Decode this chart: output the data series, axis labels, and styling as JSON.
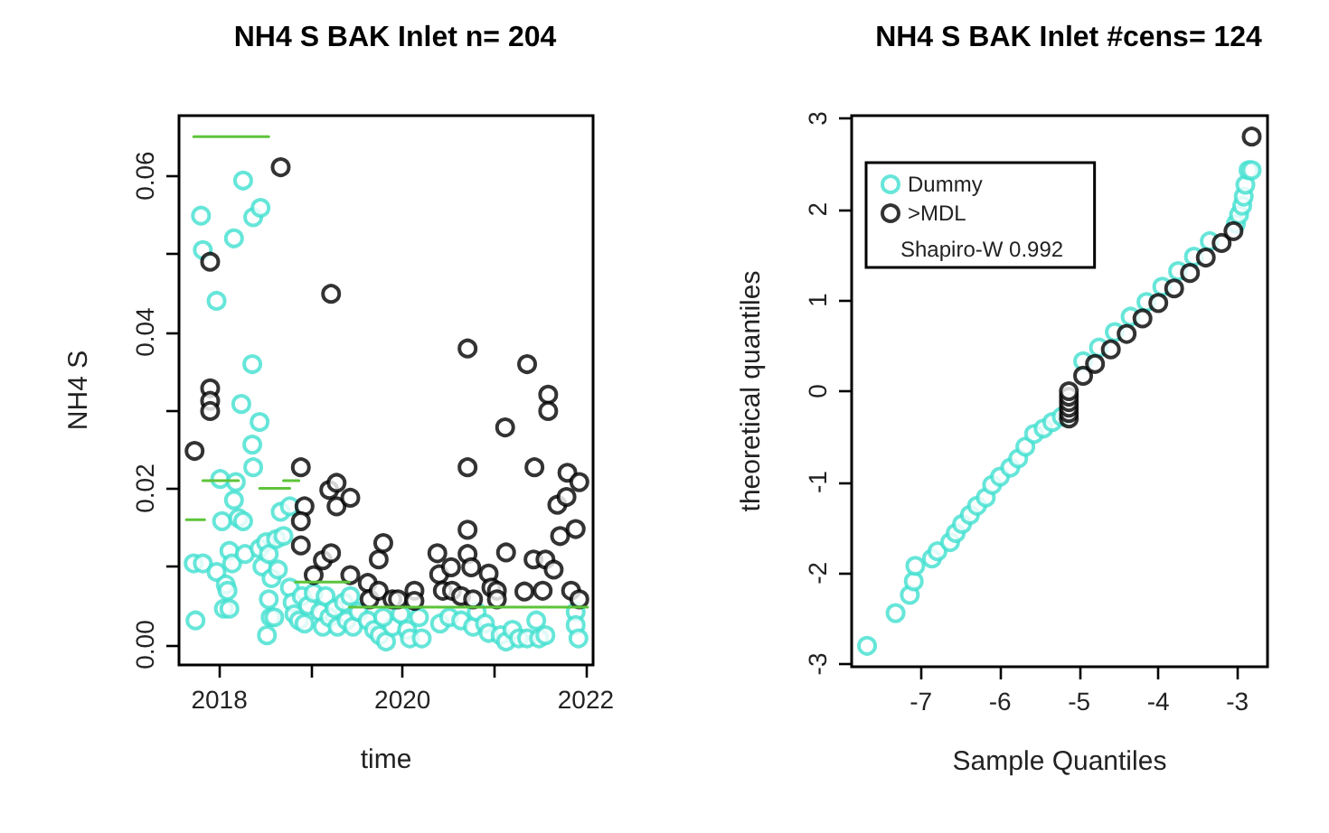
{
  "chart_data": [
    {
      "type": "scatter",
      "title": "NH4 S BAK Inlet n= 204",
      "xlabel": "time",
      "ylabel": "NH4 S",
      "marker": "circle",
      "grid": false,
      "xlim": [
        2017.56,
        2022.08
      ],
      "ylim": [
        -0.0026,
        0.0677
      ],
      "xticks": [
        2018,
        {
          "value": 2019,
          "label": null
        },
        2020,
        {
          "value": 2021,
          "label": null
        },
        2022
      ],
      "yticks": [
        {
          "value": 0,
          "label": "0.00"
        },
        {
          "value": 0.01,
          "label": null
        },
        {
          "value": 0.02,
          "label": "0.02"
        },
        {
          "value": 0.03,
          "label": null
        },
        {
          "value": 0.04,
          "label": "0.04"
        },
        {
          "value": 0.05,
          "label": null
        },
        {
          "value": 0.06,
          "label": "0.06"
        }
      ],
      "series": [
        {
          "color": "#40e0d0",
          "x": [
            2017.74,
            2017.72,
            2017.82,
            2017.8,
            2017.82,
            2017.97,
            2017.97,
            2018.01,
            2018.03,
            2018.07,
            2018.09,
            2018.05,
            2018.11,
            2018.11,
            2018.14,
            2018.16,
            2018.18,
            2018.16,
            2018.21,
            2018.26,
            2018.24,
            2018.26,
            2018.28,
            2018.36,
            2018.36,
            2018.37,
            2018.44,
            2018.37,
            2018.45,
            2018.44,
            2018.47,
            2018.51,
            2018.54,
            2018.54,
            2018.52,
            2018.56,
            2018.57,
            2018.6,
            2018.62,
            2018.67,
            2018.64,
            2018.7,
            2018.77,
            2018.77,
            2018.8,
            2018.82,
            2018.87,
            2018.9,
            2018.93,
            2018.97,
            2019.03,
            2019.1,
            2019.13,
            2019.16,
            2019.2,
            2019.26,
            2019.29,
            2019.36,
            2019.39,
            2019.43,
            2019.46,
            2019.52,
            2019.62,
            2019.69,
            2019.75,
            2019.82,
            2019.89,
            2019.79,
            2019.98,
            2020.05,
            2020.08,
            2020.18,
            2020.21,
            2020.41,
            2020.51,
            2020.64,
            2020.77,
            2020.81,
            2020.9,
            2020.94,
            2021.07,
            2021.13,
            2021.2,
            2021.27,
            2021.36,
            2021.46,
            2021.49,
            2021.56,
            2021.89,
            2021.89,
            2021.92
          ],
          "values": [
            0.0031,
            0.0104,
            0.0104,
            0.0549,
            0.0505,
            0.044,
            0.0093,
            0.0212,
            0.0158,
            0.0077,
            0.0069,
            0.0046,
            0.0046,
            0.012,
            0.0104,
            0.052,
            0.0208,
            0.0185,
            0.0162,
            0.0594,
            0.0308,
            0.0158,
            0.0116,
            0.0359,
            0.0256,
            0.0227,
            0.0285,
            0.0547,
            0.0559,
            0.0123,
            0.01,
            0.0131,
            0.0116,
            0.0058,
            0.0012,
            0.0035,
            0.0085,
            0.0035,
            0.0135,
            0.017,
            0.0096,
            0.0139,
            0.0177,
            0.0073,
            0.0054,
            0.0039,
            0.0031,
            0.0062,
            0.0027,
            0.005,
            0.0066,
            0.0042,
            0.0023,
            0.0062,
            0.0035,
            0.0046,
            0.0023,
            0.0054,
            0.0031,
            0.0062,
            0.0023,
            0.0042,
            0.0031,
            0.0019,
            0.0012,
            0.0004,
            0.0023,
            0.0035,
            0.0039,
            0.0019,
            0.0008,
            0.0035,
            0.0008,
            0.0027,
            0.0035,
            0.0031,
            0.0023,
            0.0042,
            0.0027,
            0.0015,
            0.0012,
            0.0004,
            0.0019,
            0.0008,
            0.0008,
            0.0031,
            0.0008,
            0.0012,
            0.0042,
            0.0025,
            0.0008
          ]
        },
        {
          "color": "#000000",
          "x": [
            2017.73,
            2017.9,
            2017.9,
            2017.9,
            2017.9,
            2018.67,
            2018.89,
            2018.93,
            2018.89,
            2018.89,
            2019.03,
            2019.13,
            2019.22,
            2019.22,
            2019.2,
            2019.28,
            2019.28,
            2019.43,
            2019.43,
            2019.62,
            2019.64,
            2019.74,
            2019.79,
            2019.74,
            2019.89,
            2019.95,
            2020.13,
            2020.13,
            2020.38,
            2020.4,
            2020.44,
            2020.53,
            2020.54,
            2020.64,
            2020.71,
            2020.71,
            2020.71,
            2020.71,
            2020.75,
            2020.77,
            2020.94,
            2020.97,
            2021.03,
            2021.03,
            2021.12,
            2021.13,
            2021.33,
            2021.36,
            2021.43,
            2021.44,
            2021.53,
            2021.56,
            2021.59,
            2021.59,
            2021.65,
            2021.69,
            2021.72,
            2021.79,
            2021.8,
            2021.84,
            2021.89,
            2021.93,
            2021.93
          ],
          "values": [
            0.0248,
            0.049,
            0.0328,
            0.0312,
            0.0299,
            0.0611,
            0.0227,
            0.0177,
            0.0158,
            0.0127,
            0.0089,
            0.0108,
            0.0117,
            0.0449,
            0.0198,
            0.0207,
            0.0177,
            0.0188,
            0.0089,
            0.0079,
            0.0058,
            0.0109,
            0.013,
            0.0069,
            0.0058,
            0.0058,
            0.0069,
            0.0056,
            0.0117,
            0.009,
            0.0069,
            0.0099,
            0.0069,
            0.0062,
            0.0379,
            0.0227,
            0.0147,
            0.0116,
            0.0099,
            0.0058,
            0.0091,
            0.0073,
            0.0069,
            0.0058,
            0.0278,
            0.0118,
            0.0068,
            0.0359,
            0.0109,
            0.0227,
            0.0069,
            0.0109,
            0.032,
            0.0299,
            0.0096,
            0.0179,
            0.0139,
            0.0189,
            0.022,
            0.0069,
            0.0148,
            0.0208,
            0.0058
          ]
        },
        {
          "type": "line",
          "color": "#5ec43a",
          "line_style": "solid",
          "marker": "none",
          "x": [
            2017.72,
            2018.54,
            null,
            2017.64,
            2017.84,
            null,
            2017.82,
            2018.21,
            null,
            2018.44,
            2018.77,
            null,
            2018.7,
            2018.87,
            null,
            2018.83,
            2019.42,
            null,
            2019.42,
            2022.02
          ],
          "values": [
            0.065,
            0.065,
            null,
            0.016,
            0.016,
            null,
            0.021,
            0.021,
            null,
            0.02,
            0.02,
            null,
            0.021,
            0.021,
            null,
            0.008,
            0.008,
            null,
            0.0048,
            0.0048
          ]
        }
      ]
    },
    {
      "type": "scatter",
      "title": "NH4 S BAK Inlet #cens= 124",
      "xlabel": "Sample Quantiles",
      "ylabel": "theoretical quantiles",
      "marker": "circle",
      "grid": false,
      "legend": "top left",
      "annotations": [
        "Shapiro-W 0.992"
      ],
      "xlim": [
        -7.875,
        -2.62
      ],
      "ylim": [
        -3.03,
        3.03
      ],
      "xticks": [
        -7,
        -6,
        -5,
        -4,
        -3
      ],
      "yticks": [
        -3,
        -2,
        -1,
        0,
        1,
        2,
        3
      ],
      "series": [
        {
          "name": "Dummy",
          "color": "#40e0d0",
          "x": [
            -7.68,
            -7.32,
            -7.14,
            -7.09,
            -7.07,
            -6.86,
            -6.79,
            -6.63,
            -6.56,
            -6.48,
            -6.38,
            -6.29,
            -6.18,
            -6.1,
            -6.0,
            -5.87,
            -5.77,
            -5.68,
            -5.57,
            -5.45,
            -5.34,
            -5.22,
            -4.95,
            -4.75,
            -4.55,
            -4.35,
            -4.15,
            -3.95,
            -3.75,
            -3.55,
            -3.35,
            -3.02,
            -2.98,
            -2.94,
            -2.92,
            -2.9,
            -2.86,
            -2.82
          ],
          "values": [
            -2.8,
            -2.44,
            -2.24,
            -2.09,
            -1.92,
            -1.84,
            -1.76,
            -1.66,
            -1.56,
            -1.46,
            -1.36,
            -1.26,
            -1.17,
            -1.03,
            -0.94,
            -0.84,
            -0.74,
            -0.61,
            -0.47,
            -0.41,
            -0.34,
            -0.28,
            0.33,
            0.48,
            0.65,
            0.82,
            0.98,
            1.15,
            1.32,
            1.48,
            1.65,
            1.84,
            1.94,
            2.04,
            2.14,
            2.27,
            2.43,
            2.43
          ]
        },
        {
          "name": ">MDL",
          "color": "#000000",
          "x": [
            -5.13,
            -5.13,
            -5.13,
            -5.13,
            -5.13,
            -5.13,
            -4.95,
            -4.8,
            -4.6,
            -4.4,
            -4.2,
            -4.0,
            -3.8,
            -3.6,
            -3.4,
            -3.2,
            -3.05,
            -2.82
          ],
          "values": [
            -0.3,
            -0.24,
            -0.18,
            -0.12,
            -0.06,
            0.0,
            0.17,
            0.3,
            0.46,
            0.63,
            0.8,
            0.97,
            1.13,
            1.3,
            1.47,
            1.63,
            1.76,
            2.8
          ]
        }
      ]
    }
  ]
}
